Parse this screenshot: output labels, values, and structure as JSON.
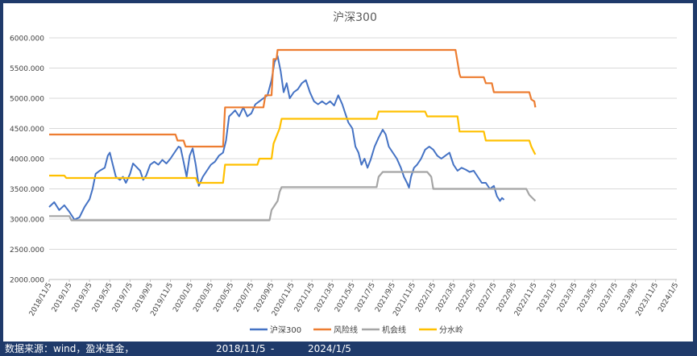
{
  "chart_data": {
    "type": "line",
    "title": "沪深300",
    "y_ticks": [
      "2000.000",
      "2500.000",
      "3000.000",
      "3500.000",
      "4000.000",
      "4500.000",
      "5000.000",
      "5500.000",
      "6000.000"
    ],
    "ylim": [
      2000,
      6000
    ],
    "x_ticks": [
      "2018/11/5",
      "2019/1/5",
      "2019/3/5",
      "2019/5/5",
      "2019/7/5",
      "2019/9/5",
      "2019/11/5",
      "2020/1/5",
      "2020/3/5",
      "2020/5/5",
      "2020/7/5",
      "2020/9/5",
      "2020/11/5",
      "2021/1/5",
      "2021/3/5",
      "2021/5/5",
      "2021/7/5",
      "2021/9/5",
      "2021/11/5",
      "2022/1/5",
      "2022/3/5",
      "2022/5/5",
      "2022/7/5",
      "2022/9/5",
      "2022/11/5",
      "2023/1/5",
      "2023/3/5",
      "2023/5/5",
      "2023/7/5",
      "2023/9/5",
      "2023/11/5",
      "2024/1/5"
    ],
    "grid": "horizontal",
    "legend_position": "bottom",
    "series": [
      {
        "name": "沪深300",
        "color": "#4472c4",
        "points": [
          [
            0,
            3200
          ],
          [
            0.5,
            3280
          ],
          [
            1,
            3150
          ],
          [
            1.5,
            3230
          ],
          [
            2,
            3120
          ],
          [
            2.5,
            2990
          ],
          [
            3,
            3030
          ],
          [
            3.5,
            3200
          ],
          [
            4,
            3330
          ],
          [
            4.3,
            3500
          ],
          [
            4.6,
            3750
          ],
          [
            5,
            3800
          ],
          [
            5.5,
            3850
          ],
          [
            5.8,
            4050
          ],
          [
            6,
            4100
          ],
          [
            6.3,
            3900
          ],
          [
            6.6,
            3700
          ],
          [
            7,
            3650
          ],
          [
            7.3,
            3700
          ],
          [
            7.6,
            3600
          ],
          [
            8,
            3750
          ],
          [
            8.3,
            3920
          ],
          [
            8.6,
            3870
          ],
          [
            9,
            3800
          ],
          [
            9.3,
            3650
          ],
          [
            9.6,
            3720
          ],
          [
            10,
            3900
          ],
          [
            10.4,
            3950
          ],
          [
            10.8,
            3900
          ],
          [
            11.2,
            3980
          ],
          [
            11.6,
            3920
          ],
          [
            12,
            4000
          ],
          [
            12.4,
            4100
          ],
          [
            12.8,
            4200
          ],
          [
            13,
            4180
          ],
          [
            13.3,
            3950
          ],
          [
            13.6,
            3700
          ],
          [
            13.9,
            4050
          ],
          [
            14.2,
            4170
          ],
          [
            14.5,
            3900
          ],
          [
            14.8,
            3550
          ],
          [
            15.2,
            3700
          ],
          [
            15.6,
            3800
          ],
          [
            16,
            3900
          ],
          [
            16.4,
            3950
          ],
          [
            16.8,
            4050
          ],
          [
            17.2,
            4100
          ],
          [
            17.5,
            4300
          ],
          [
            17.8,
            4700
          ],
          [
            18.1,
            4750
          ],
          [
            18.4,
            4800
          ],
          [
            18.8,
            4700
          ],
          [
            19.2,
            4850
          ],
          [
            19.6,
            4700
          ],
          [
            20,
            4750
          ],
          [
            20.4,
            4900
          ],
          [
            20.8,
            4950
          ],
          [
            21.2,
            5000
          ],
          [
            21.6,
            5050
          ],
          [
            22,
            5300
          ],
          [
            22.3,
            5600
          ],
          [
            22.6,
            5700
          ],
          [
            22.9,
            5450
          ],
          [
            23.2,
            5100
          ],
          [
            23.5,
            5250
          ],
          [
            23.8,
            5000
          ],
          [
            24.2,
            5100
          ],
          [
            24.6,
            5150
          ],
          [
            25,
            5250
          ],
          [
            25.4,
            5300
          ],
          [
            25.8,
            5100
          ],
          [
            26.2,
            4950
          ],
          [
            26.6,
            4900
          ],
          [
            27,
            4950
          ],
          [
            27.4,
            4900
          ],
          [
            27.8,
            4950
          ],
          [
            28.2,
            4880
          ],
          [
            28.6,
            5050
          ],
          [
            29,
            4900
          ],
          [
            29.3,
            4750
          ],
          [
            29.6,
            4600
          ],
          [
            30,
            4500
          ],
          [
            30.3,
            4200
          ],
          [
            30.6,
            4100
          ],
          [
            30.9,
            3900
          ],
          [
            31.2,
            4000
          ],
          [
            31.5,
            3850
          ],
          [
            31.8,
            3980
          ],
          [
            32.2,
            4200
          ],
          [
            32.6,
            4350
          ],
          [
            33,
            4480
          ],
          [
            33.3,
            4400
          ],
          [
            33.6,
            4200
          ],
          [
            34,
            4100
          ],
          [
            34.4,
            4000
          ],
          [
            34.8,
            3850
          ],
          [
            35.1,
            3700
          ],
          [
            35.4,
            3600
          ],
          [
            35.6,
            3520
          ],
          [
            35.8,
            3700
          ],
          [
            36.1,
            3850
          ],
          [
            36.4,
            3900
          ],
          [
            36.8,
            4000
          ],
          [
            37.2,
            4150
          ],
          [
            37.6,
            4200
          ],
          [
            38,
            4150
          ],
          [
            38.4,
            4050
          ],
          [
            38.8,
            4000
          ],
          [
            39.2,
            4050
          ],
          [
            39.6,
            4100
          ],
          [
            40,
            3900
          ],
          [
            40.4,
            3800
          ],
          [
            40.8,
            3850
          ],
          [
            41.2,
            3820
          ],
          [
            41.6,
            3780
          ],
          [
            42,
            3800
          ],
          [
            42.4,
            3700
          ],
          [
            42.8,
            3600
          ],
          [
            43.2,
            3600
          ],
          [
            43.6,
            3500
          ],
          [
            44,
            3550
          ],
          [
            44.3,
            3380
          ],
          [
            44.6,
            3300
          ],
          [
            44.8,
            3350
          ],
          [
            45,
            3320
          ]
        ]
      },
      {
        "name": "风险线",
        "color": "#ed7d31",
        "points": [
          [
            0,
            4400
          ],
          [
            12.5,
            4400
          ],
          [
            12.7,
            4300
          ],
          [
            13.3,
            4300
          ],
          [
            13.5,
            4200
          ],
          [
            17.2,
            4200
          ],
          [
            17.4,
            4850
          ],
          [
            21.2,
            4850
          ],
          [
            21.4,
            5050
          ],
          [
            22,
            5050
          ],
          [
            22.2,
            5650
          ],
          [
            22.5,
            5650
          ],
          [
            22.6,
            5800
          ],
          [
            40.2,
            5800
          ],
          [
            40.4,
            5600
          ],
          [
            40.6,
            5400
          ],
          [
            40.7,
            5350
          ],
          [
            43,
            5350
          ],
          [
            43.2,
            5250
          ],
          [
            43.8,
            5250
          ],
          [
            44,
            5100
          ],
          [
            47.5,
            5100
          ],
          [
            47.7,
            4980
          ],
          [
            48,
            4950
          ],
          [
            48.1,
            4850
          ]
        ]
      },
      {
        "name": "机会线",
        "color": "#a5a5a5",
        "points": [
          [
            0,
            3050
          ],
          [
            2,
            3050
          ],
          [
            2.2,
            2980
          ],
          [
            21.8,
            2980
          ],
          [
            22,
            3150
          ],
          [
            22.6,
            3300
          ],
          [
            22.8,
            3450
          ],
          [
            23,
            3530
          ],
          [
            32.4,
            3530
          ],
          [
            32.6,
            3700
          ],
          [
            33,
            3780
          ],
          [
            37.4,
            3780
          ],
          [
            37.8,
            3700
          ],
          [
            38,
            3500
          ],
          [
            47.2,
            3500
          ],
          [
            47.5,
            3400
          ],
          [
            48.1,
            3300
          ]
        ]
      },
      {
        "name": "分水岭",
        "color": "#ffc000",
        "points": [
          [
            0,
            3720
          ],
          [
            1.5,
            3720
          ],
          [
            1.7,
            3680
          ],
          [
            14.5,
            3680
          ],
          [
            14.7,
            3600
          ],
          [
            17.2,
            3600
          ],
          [
            17.4,
            3900
          ],
          [
            20.6,
            3900
          ],
          [
            20.8,
            4000
          ],
          [
            22,
            4000
          ],
          [
            22.2,
            4250
          ],
          [
            22.8,
            4500
          ],
          [
            23,
            4660
          ],
          [
            32.4,
            4660
          ],
          [
            32.6,
            4780
          ],
          [
            37.2,
            4780
          ],
          [
            37.4,
            4700
          ],
          [
            40.4,
            4700
          ],
          [
            40.6,
            4450
          ],
          [
            43,
            4450
          ],
          [
            43.2,
            4300
          ],
          [
            47.5,
            4300
          ],
          [
            47.7,
            4200
          ],
          [
            48,
            4100
          ],
          [
            48.1,
            4070
          ]
        ]
      }
    ]
  },
  "footer": {
    "source": "数据来源：wind，盈米基金，",
    "range_start": "2018/11/5",
    "range_sep": "-",
    "range_end": "2024/1/5"
  }
}
